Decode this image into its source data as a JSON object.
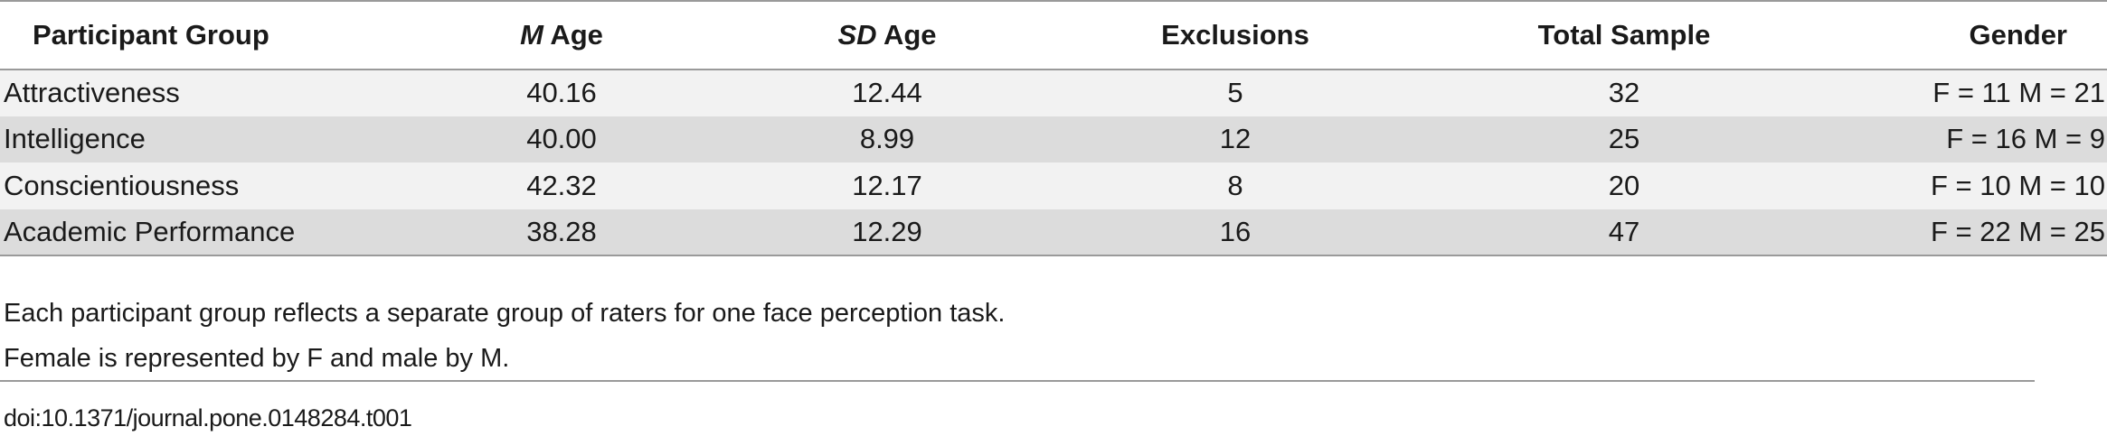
{
  "table": {
    "headers": {
      "group": "Participant Group",
      "m_age_italic": "M",
      "m_age_rest": " Age",
      "sd_age_italic": "SD",
      "sd_age_rest": " Age",
      "exclusions": "Exclusions",
      "total": "Total Sample",
      "gender": "Gender"
    },
    "rows": [
      {
        "group": "Attractiveness",
        "m_age": "40.16",
        "sd_age": "12.44",
        "exclusions": "5",
        "total": "32",
        "gender": "F = 11 M = 21"
      },
      {
        "group": "Intelligence",
        "m_age": "40.00",
        "sd_age": "8.99",
        "exclusions": "12",
        "total": "25",
        "gender": "F = 16 M = 9"
      },
      {
        "group": "Conscientiousness",
        "m_age": "42.32",
        "sd_age": "12.17",
        "exclusions": "8",
        "total": "20",
        "gender": "F = 10 M = 10"
      },
      {
        "group": "Academic Performance",
        "m_age": "38.28",
        "sd_age": "12.29",
        "exclusions": "16",
        "total": "47",
        "gender": "F = 22 M = 25"
      }
    ]
  },
  "notes": [
    "Each participant group reflects a separate group of raters for one face perception task.",
    "Female is represented by F and male by M."
  ],
  "doi": "doi:10.1371/journal.pone.0148284.t001"
}
